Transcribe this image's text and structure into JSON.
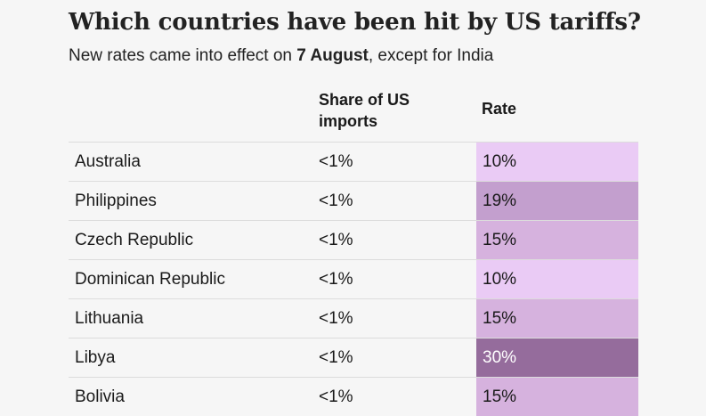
{
  "title": "Which countries have been hit by US tariffs?",
  "subtitle_pre": "New rates came into effect on ",
  "subtitle_bold": "7 August",
  "subtitle_post": ", except for India",
  "columns": {
    "share": "Share of US imports",
    "rate": "Rate"
  },
  "colors": {
    "rate_10": "#eacbf5",
    "rate_15": "#d6b2de",
    "rate_19": "#c39fce",
    "rate_30": "#956c9c",
    "text_light": "#ffffff",
    "text_dark": "#1a1a1a"
  },
  "chart_data": {
    "type": "table",
    "title": "Which countries have been hit by US tariffs?",
    "subtitle": "New rates came into effect on 7 August, except for India",
    "columns": [
      "Share of US imports",
      "Rate"
    ],
    "rows": [
      {
        "country": "Australia",
        "share": "<1%",
        "rate": "10%",
        "rate_value": 10
      },
      {
        "country": "Philippines",
        "share": "<1%",
        "rate": "19%",
        "rate_value": 19
      },
      {
        "country": "Czech Republic",
        "share": "<1%",
        "rate": "15%",
        "rate_value": 15
      },
      {
        "country": "Dominican Republic",
        "share": "<1%",
        "rate": "10%",
        "rate_value": 10
      },
      {
        "country": "Lithuania",
        "share": "<1%",
        "rate": "15%",
        "rate_value": 15
      },
      {
        "country": "Libya",
        "share": "<1%",
        "rate": "30%",
        "rate_value": 30
      },
      {
        "country": "Bolivia",
        "share": "<1%",
        "rate": "15%",
        "rate_value": 15
      }
    ]
  }
}
